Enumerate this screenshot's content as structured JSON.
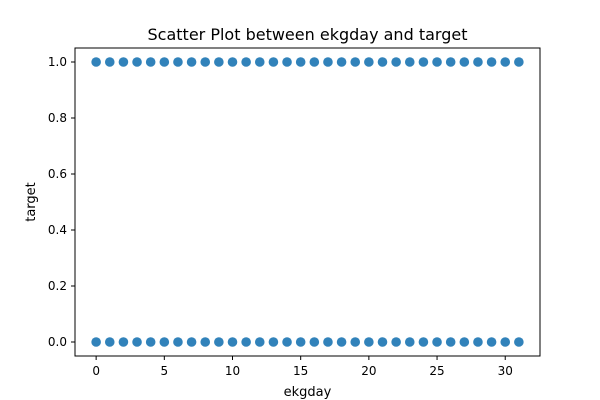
{
  "chart_data": {
    "type": "scatter",
    "title": "Scatter Plot between ekgday and target",
    "xlabel": "ekgday",
    "ylabel": "target",
    "xlim": [
      -1.55,
      32.55
    ],
    "ylim": [
      -0.05,
      1.05
    ],
    "x_ticks": [
      0,
      5,
      10,
      15,
      20,
      25,
      30
    ],
    "x_tick_labels": [
      "0",
      "5",
      "10",
      "15",
      "20",
      "25",
      "30"
    ],
    "y_ticks": [
      0.0,
      0.2,
      0.4,
      0.6,
      0.8,
      1.0
    ],
    "y_tick_labels": [
      "0.0",
      "0.2",
      "0.4",
      "0.6",
      "0.8",
      "1.0"
    ],
    "grid": false,
    "marker_color": "#1f77b4",
    "series": [
      {
        "x": [
          0,
          1,
          2,
          3,
          4,
          5,
          6,
          7,
          8,
          9,
          10,
          11,
          12,
          13,
          14,
          15,
          16,
          17,
          18,
          19,
          20,
          21,
          22,
          23,
          24,
          25,
          26,
          27,
          28,
          29,
          30,
          31,
          0,
          1,
          2,
          3,
          4,
          5,
          6,
          7,
          8,
          9,
          10,
          11,
          12,
          13,
          14,
          15,
          16,
          17,
          18,
          19,
          20,
          21,
          22,
          23,
          24,
          25,
          26,
          27,
          28,
          29,
          30,
          31
        ],
        "y": [
          1,
          1,
          1,
          1,
          1,
          1,
          1,
          1,
          1,
          1,
          1,
          1,
          1,
          1,
          1,
          1,
          1,
          1,
          1,
          1,
          1,
          1,
          1,
          1,
          1,
          1,
          1,
          1,
          1,
          1,
          1,
          1,
          0,
          0,
          0,
          0,
          0,
          0,
          0,
          0,
          0,
          0,
          0,
          0,
          0,
          0,
          0,
          0,
          0,
          0,
          0,
          0,
          0,
          0,
          0,
          0,
          0,
          0,
          0,
          0,
          0,
          0,
          0,
          0
        ]
      }
    ]
  }
}
